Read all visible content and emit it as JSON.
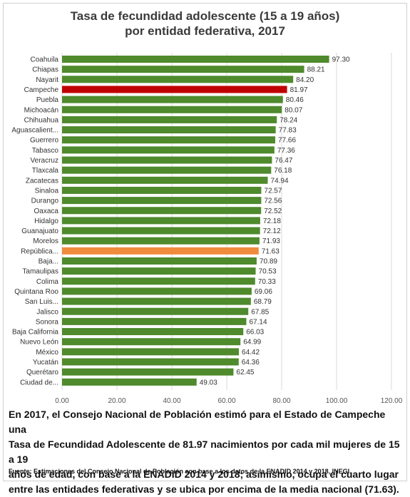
{
  "chart_data": {
    "type": "bar",
    "orientation": "horizontal",
    "title_line1": "Tasa de fecundidad adolescente (15 a 19 años)",
    "title_line2": "por entidad federativa, 2017",
    "xlim": [
      0,
      120
    ],
    "xticks": [
      "0.00",
      "20.00",
      "40.00",
      "60.00",
      "80.00",
      "100.00",
      "120.00"
    ],
    "grid": true,
    "colors": {
      "default": "#4f8a2d",
      "highlight": "#c00000",
      "national": "#f08a3c"
    },
    "categories": [
      "Coahuila",
      "Chiapas",
      "Nayarit",
      "Campeche",
      "Puebla",
      "Michoacán",
      "Chihuahua",
      "Aguascalient...",
      "Guerrero",
      "Tabasco",
      "Veracruz",
      "Tlaxcala",
      "Zacatecas",
      "Sinaloa",
      "Durango",
      "Oaxaca",
      "Hidalgo",
      "Guanajuato",
      "Morelos",
      "República...",
      "Baja...",
      "Tamaulipas",
      "Colima",
      "Quintana Roo",
      "San Luis...",
      "Jalisco",
      "Sonora",
      "Baja California",
      "Nuevo León",
      "México",
      "Yucatán",
      "Querétaro",
      "Ciudad de..."
    ],
    "values": [
      97.3,
      88.21,
      84.2,
      81.97,
      80.46,
      80.07,
      78.24,
      77.83,
      77.66,
      77.36,
      76.47,
      76.18,
      74.94,
      72.57,
      72.56,
      72.52,
      72.18,
      72.12,
      71.93,
      71.63,
      70.89,
      70.53,
      70.33,
      69.06,
      68.79,
      67.85,
      67.14,
      66.03,
      64.99,
      64.42,
      64.36,
      62.45,
      49.03
    ],
    "value_labels": [
      "97.30",
      "88.21",
      "84.20",
      "81.97",
      "80.46",
      "80.07",
      "78.24",
      "77.83",
      "77.66",
      "77.36",
      "76.47",
      "76.18",
      "74.94",
      "72.57",
      "72.56",
      "72.52",
      "72.18",
      "72.12",
      "71.93",
      "71.63",
      "70.89",
      "70.53",
      "70.33",
      "69.06",
      "68.79",
      "67.85",
      "67.14",
      "66.03",
      "64.99",
      "64.42",
      "64.36",
      "62.45",
      "49.03"
    ],
    "highlight": {
      "Campeche": "highlight",
      "República...": "national"
    }
  },
  "note": {
    "line1": "En 2017, el Consejo Nacional de Población estimó para el Estado de Campeche una",
    "line2": "Tasa de Fecundidad Adolescente de 81.97 nacimientos por cada mil mujeres de 15 a 19",
    "line3": "años de edad, con base a la ENADID 2014 y 2018; asimismo, ocupa el cuarto lugar",
    "line4": "entre las entidades federativas y se ubica por encima de la media nacional (71.63)."
  },
  "source": "Fuente: Estimaciones del Consejo Nacional de Población con base a los datos de la ENADID 2014 y 2018, INEGI."
}
